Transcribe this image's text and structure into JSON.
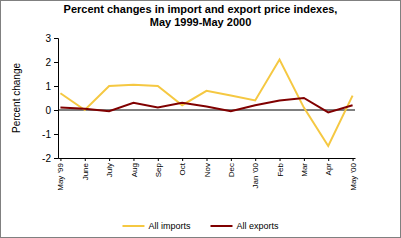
{
  "chart_data": {
    "type": "line",
    "title": "Percent changes in import  and  export price indexes,\nMay 1999-May 2000",
    "y_label": "Percent change",
    "categories": [
      "May '99",
      "June",
      "July",
      "Aug",
      "Sep",
      "Oct",
      "Nov",
      "Dec",
      "Jan '00",
      "Feb",
      "Mar",
      "Apr",
      "May '00"
    ],
    "series": [
      {
        "name": "All imports",
        "color": "#f5c842",
        "values": [
          0.7,
          0.0,
          1.0,
          1.05,
          1.0,
          0.2,
          0.8,
          0.6,
          0.4,
          2.1,
          0.1,
          -1.5,
          0.6
        ]
      },
      {
        "name": "All exports",
        "color": "#800000",
        "values": [
          0.1,
          0.05,
          -0.05,
          0.3,
          0.1,
          0.3,
          0.15,
          -0.05,
          0.2,
          0.4,
          0.5,
          -0.1,
          0.2
        ]
      }
    ],
    "ylim": [
      -2,
      3
    ],
    "yticks": [
      -2,
      -1,
      0,
      1,
      2,
      3
    ],
    "grid": false,
    "legend": "bottom"
  }
}
